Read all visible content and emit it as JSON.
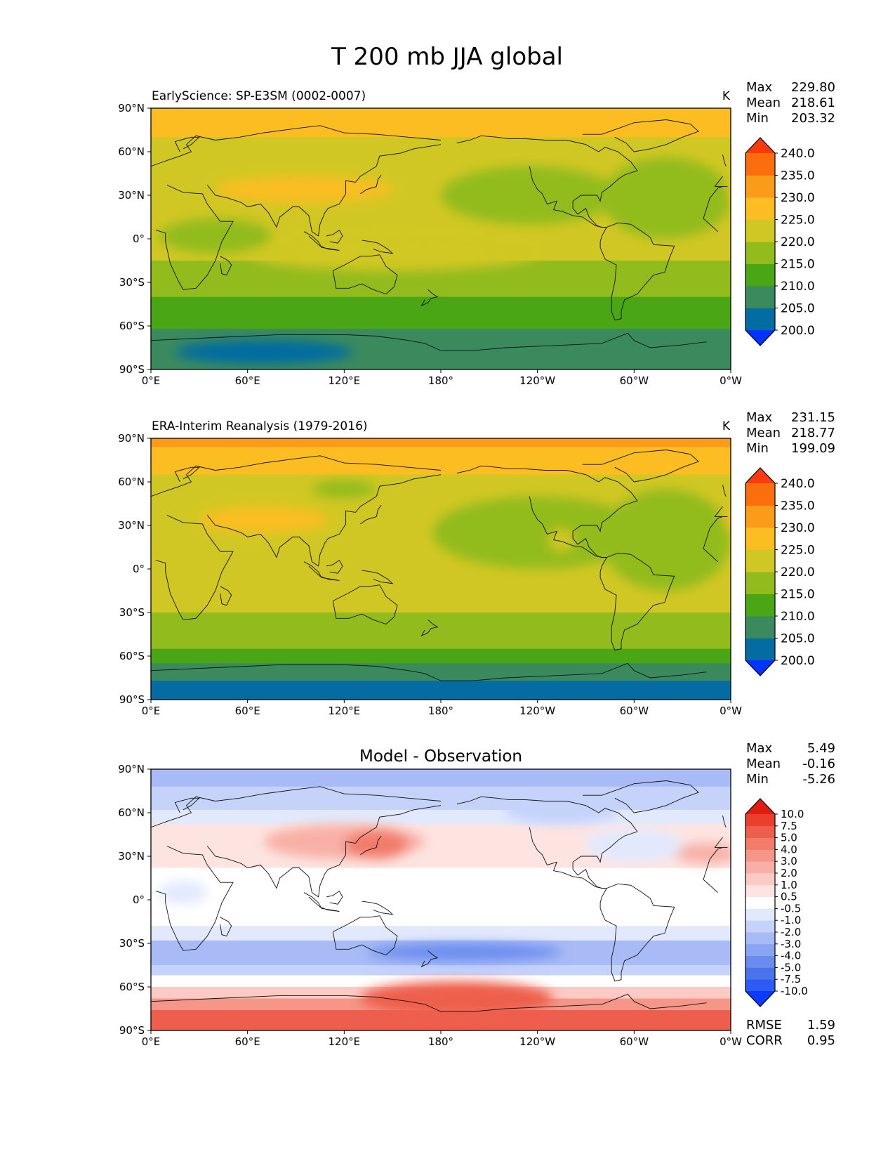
{
  "chart_data": {
    "type": "heatmap",
    "title": "T 200 mb JJA global",
    "x_ticks": [
      "0°E",
      "60°E",
      "120°E",
      "180°",
      "120°W",
      "60°W",
      "0°W"
    ],
    "y_ticks": [
      "90°N",
      "60°N",
      "30°N",
      "0°",
      "30°S",
      "60°S",
      "90°S"
    ],
    "panels": [
      {
        "id": "test",
        "subtitle": "EarlyScience: SP-E3SM (0002-0007)",
        "units": "K",
        "stats": [
          {
            "label": "Max",
            "value": "229.80"
          },
          {
            "label": "Mean",
            "value": "218.61"
          },
          {
            "label": "Min",
            "value": "203.32"
          }
        ],
        "levels": [
          200,
          205,
          210,
          215,
          220,
          225,
          230,
          235,
          240
        ],
        "level_labels": [
          "200.0",
          "205.0",
          "210.0",
          "215.0",
          "220.0",
          "225.0",
          "230.0",
          "235.0",
          "240.0"
        ],
        "colors": [
          "#0033ff",
          "#046ca3",
          "#3a8a5e",
          "#4aa614",
          "#92bb1e",
          "#d1c724",
          "#fbbd22",
          "#fb9b1a",
          "#fb6e0e",
          "#ff3a0d"
        ],
        "lat_bands": [
          {
            "lat": [
              90,
              70
            ],
            "level": 6
          },
          {
            "lat": [
              70,
              -15
            ],
            "level": 5
          },
          {
            "lat": [
              -15,
              -40
            ],
            "level": 4
          },
          {
            "lat": [
              -40,
              -62
            ],
            "level": 3
          },
          {
            "lat": [
              -62,
              -90
            ],
            "level": 2
          }
        ],
        "blobs": [
          {
            "lon": 95,
            "lat": 34,
            "dlon": 55,
            "dlat": 9,
            "level": 6
          },
          {
            "lon": 345,
            "lat": 32,
            "dlon": 25,
            "dlat": 8,
            "level": 6
          },
          {
            "lon": 235,
            "lat": 30,
            "dlon": 55,
            "dlat": 20,
            "level": 4
          },
          {
            "lon": 320,
            "lat": 28,
            "dlon": 40,
            "dlat": 28,
            "level": 4
          },
          {
            "lon": 40,
            "lat": 2,
            "dlon": 35,
            "dlat": 12,
            "level": 4
          },
          {
            "lon": 150,
            "lat": -10,
            "dlon": 90,
            "dlat": 12,
            "level": 5
          },
          {
            "lon": 70,
            "lat": -78,
            "dlon": 55,
            "dlat": 8,
            "level": 1
          }
        ]
      },
      {
        "id": "reference",
        "subtitle": "ERA-Interim Reanalysis (1979-2016)",
        "units": "K",
        "stats": [
          {
            "label": "Max",
            "value": "231.15"
          },
          {
            "label": "Mean",
            "value": "218.77"
          },
          {
            "label": "Min",
            "value": "199.09"
          }
        ],
        "levels": [
          200,
          205,
          210,
          215,
          220,
          225,
          230,
          235,
          240
        ],
        "level_labels": [
          "200.0",
          "205.0",
          "210.0",
          "215.0",
          "220.0",
          "225.0",
          "230.0",
          "235.0",
          "240.0"
        ],
        "colors": [
          "#0033ff",
          "#046ca3",
          "#3a8a5e",
          "#4aa614",
          "#92bb1e",
          "#d1c724",
          "#fbbd22",
          "#fb9b1a",
          "#fb6e0e",
          "#ff3a0d"
        ],
        "lat_bands": [
          {
            "lat": [
              90,
              84
            ],
            "level": 7
          },
          {
            "lat": [
              84,
              65
            ],
            "level": 6
          },
          {
            "lat": [
              65,
              -30
            ],
            "level": 5
          },
          {
            "lat": [
              -30,
              -55
            ],
            "level": 4
          },
          {
            "lat": [
              -55,
              -65
            ],
            "level": 3
          },
          {
            "lat": [
              -65,
              -77
            ],
            "level": 2
          },
          {
            "lat": [
              -77,
              -90
            ],
            "level": 1
          }
        ],
        "blobs": [
          {
            "lon": 70,
            "lat": 34,
            "dlon": 40,
            "dlat": 9,
            "level": 6
          },
          {
            "lon": 350,
            "lat": 32,
            "dlon": 18,
            "dlat": 8,
            "level": 6
          },
          {
            "lon": 240,
            "lat": 25,
            "dlon": 65,
            "dlat": 25,
            "level": 4
          },
          {
            "lon": 320,
            "lat": 20,
            "dlon": 40,
            "dlat": 35,
            "level": 4
          },
          {
            "lon": 120,
            "lat": 55,
            "dlon": 20,
            "dlat": 6,
            "level": 4
          },
          {
            "lon": 255,
            "lat": 20,
            "dlon": 8,
            "dlat": 8,
            "level": 5
          }
        ]
      },
      {
        "id": "diff",
        "subtitle": "Model - Observation",
        "units": "",
        "stats": [
          {
            "label": "Max",
            "value": "5.49"
          },
          {
            "label": "Mean",
            "value": "-0.16"
          },
          {
            "label": "Min",
            "value": "-5.26"
          }
        ],
        "metrics": [
          {
            "label": "RMSE",
            "value": "1.59"
          },
          {
            "label": "CORR",
            "value": "0.95"
          }
        ],
        "levels": [
          -10,
          -7.5,
          -5,
          -4,
          -3,
          -2,
          -1,
          -0.5,
          0.5,
          1,
          2,
          3,
          4,
          5,
          7.5,
          10
        ],
        "level_labels": [
          "-10.0",
          "-7.5",
          "-5.0",
          "-4.0",
          "-3.0",
          "-2.0",
          "-1.0",
          "-0.5",
          "0.5",
          "1.0",
          "2.0",
          "3.0",
          "4.0",
          "5.0",
          "7.5",
          "10.0"
        ],
        "colors": [
          "#0a3bff",
          "#2d5cf5",
          "#4b74ec",
          "#6a8cee",
          "#8aa4f2",
          "#a8bbf6",
          "#c5d2fa",
          "#e2e9fd",
          "#ffffff",
          "#fde4e1",
          "#fbcac4",
          "#f8b0a6",
          "#f59688",
          "#f27b6a",
          "#ee5e4c",
          "#ea3f2d",
          "#e01d10"
        ],
        "lat_bands": [
          {
            "lat": [
              90,
              78
            ],
            "level": 5
          },
          {
            "lat": [
              78,
              62
            ],
            "level": 6
          },
          {
            "lat": [
              62,
              52
            ],
            "level": 7
          },
          {
            "lat": [
              52,
              22
            ],
            "level": 9
          },
          {
            "lat": [
              22,
              -18
            ],
            "level": 8
          },
          {
            "lat": [
              -18,
              -28
            ],
            "level": 7
          },
          {
            "lat": [
              -28,
              -45
            ],
            "level": 5
          },
          {
            "lat": [
              -45,
              -52
            ],
            "level": 6
          },
          {
            "lat": [
              -52,
              -60
            ],
            "level": 8
          },
          {
            "lat": [
              -60,
              -68
            ],
            "level": 10
          },
          {
            "lat": [
              -68,
              -76
            ],
            "level": 12
          },
          {
            "lat": [
              -76,
              -90
            ],
            "level": 14
          }
        ],
        "blobs": [
          {
            "lon": 120,
            "lat": 40,
            "dlon": 50,
            "dlat": 12,
            "level": 11
          },
          {
            "lon": 140,
            "lat": 38,
            "dlon": 20,
            "dlat": 10,
            "level": 13
          },
          {
            "lon": 345,
            "lat": 32,
            "dlon": 20,
            "dlat": 7,
            "level": 11
          },
          {
            "lon": 255,
            "lat": 62,
            "dlon": 35,
            "dlat": 10,
            "level": 6
          },
          {
            "lon": 300,
            "lat": 38,
            "dlon": 30,
            "dlat": 12,
            "level": 7
          },
          {
            "lon": 195,
            "lat": -36,
            "dlon": 60,
            "dlat": 6,
            "level": 3
          },
          {
            "lon": 190,
            "lat": -68,
            "dlon": 60,
            "dlat": 12,
            "level": 14
          },
          {
            "lon": 20,
            "lat": 5,
            "dlon": 15,
            "dlat": 8,
            "level": 7
          }
        ]
      }
    ]
  }
}
